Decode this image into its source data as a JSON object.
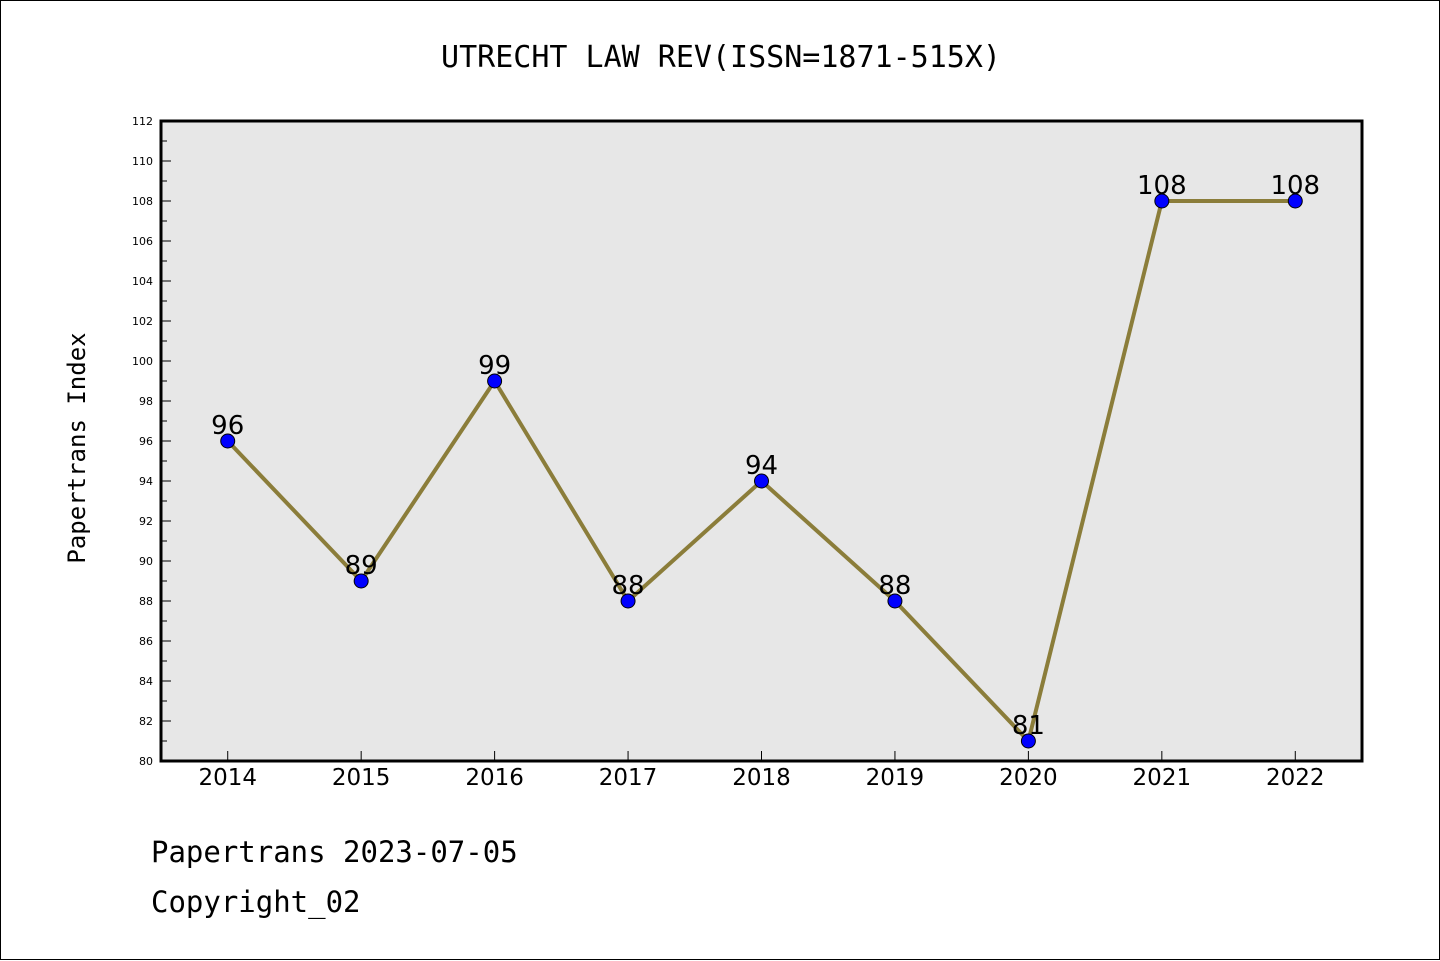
{
  "chart_data": {
    "type": "line",
    "title": "UTRECHT LAW REV(ISSN=1871-515X)",
    "xlabel": "",
    "ylabel": "Papertrans Index",
    "categories": [
      "2014",
      "2015",
      "2016",
      "2017",
      "2018",
      "2019",
      "2020",
      "2021",
      "2022"
    ],
    "series": [
      {
        "values": [
          96,
          89,
          99,
          88,
          94,
          88,
          81,
          108,
          108
        ]
      }
    ],
    "data_labels": [
      "96",
      "89",
      "99",
      "88",
      "94",
      "88",
      "81",
      "108",
      "108"
    ],
    "ylim": [
      80,
      112
    ],
    "yticks": [
      "80",
      "82",
      "84",
      "86",
      "88",
      "90",
      "92",
      "94",
      "96",
      "98",
      "100",
      "102",
      "104",
      "106",
      "108",
      "110",
      "112"
    ],
    "grid": false,
    "line_color": "#8b7d3a",
    "marker_color": "#0000ff",
    "plot_background": "#e7e7e7"
  },
  "footer": {
    "line1": "Papertrans 2023-07-05",
    "line2": "Copyright_02"
  }
}
